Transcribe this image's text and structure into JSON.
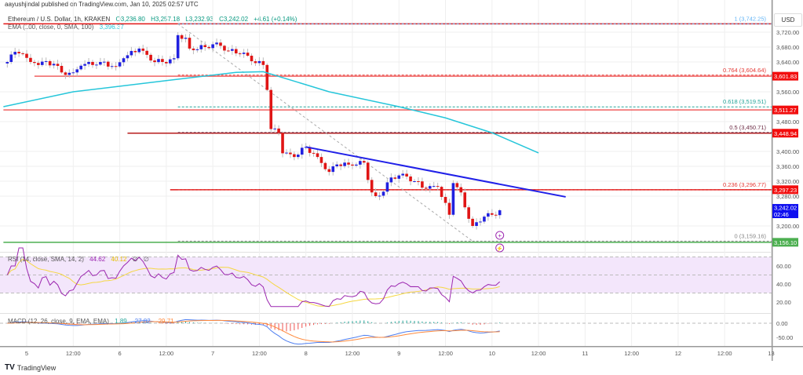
{
  "header": {
    "publisher": "aayushjindal published on TradingView.com, Jan 10, 2025 02:57 UTC",
    "symbol": "Ethereum / U.S. Dollar, 1h, KRAKEN",
    "open": "O3,236.80",
    "high": "H3,257.18",
    "low": "L3,232.93",
    "close": "C3,242.02",
    "change": "+4.61 (+0.14%)",
    "ema_label": "EMA (100, close, 0, SMA, 100)",
    "ema_value": "3,396.37",
    "currency": "USD"
  },
  "rsi_legend": {
    "label": "RSI (14, close, SMA, 14, 2)",
    "value": "44.62",
    "sma": "40.12",
    "extra1": "∅",
    "extra2": "∅"
  },
  "macd_legend": {
    "label": "MACD (12, 26, close, 9, EMA, EMA)",
    "hist": "1.89",
    "macd": "-27.82",
    "signal": "-29.71"
  },
  "footer": {
    "logo": "TV",
    "brand": "TradingView"
  },
  "colors": {
    "up": "#2020e0",
    "down": "#e01515",
    "ema": "#26c6da",
    "trendline": "#2020e8",
    "rsi": "#9c27b0",
    "rsi_sma": "#f5d742",
    "macd": "#4f7ff0",
    "signal": "#ff8a3d",
    "last_price": "#1010f0",
    "support": "#4caf50"
  },
  "chart_data": {
    "type": "candlestick",
    "interval": "1h",
    "ylim": [
      3140,
      3760
    ],
    "price_ticks": [
      "3,720.00",
      "3,680.00",
      "3,640.00",
      "3,560.00",
      "3,480.00",
      "3,400.00",
      "3,360.00",
      "3,320.00",
      "3,280.00",
      "3,200.00"
    ],
    "price_tick_values": [
      3720,
      3680,
      3640,
      3560,
      3480,
      3400,
      3360,
      3320,
      3280,
      3200
    ],
    "time_ticks": [
      {
        "t": "01-05 00:00",
        "label": "5"
      },
      {
        "t": "01-05 12:00",
        "label": "12:00"
      },
      {
        "t": "01-06 00:00",
        "label": "6"
      },
      {
        "t": "01-06 12:00",
        "label": "12:00"
      },
      {
        "t": "01-07 00:00",
        "label": "7"
      },
      {
        "t": "01-07 12:00",
        "label": "12:00"
      },
      {
        "t": "01-08 00:00",
        "label": "8"
      },
      {
        "t": "01-08 12:00",
        "label": "12:00"
      },
      {
        "t": "01-09 00:00",
        "label": "9"
      },
      {
        "t": "01-09 12:00",
        "label": "12:00"
      },
      {
        "t": "01-10 00:00",
        "label": "10"
      },
      {
        "t": "01-10 12:00",
        "label": "12:00"
      },
      {
        "t": "01-11 00:00",
        "label": "11"
      },
      {
        "t": "01-11 12:00",
        "label": "12:00"
      },
      {
        "t": "01-12 00:00",
        "label": "12"
      },
      {
        "t": "01-12 12:00",
        "label": "12:00"
      },
      {
        "t": "01-13 00:00",
        "label": "13"
      }
    ],
    "close_path": [
      [
        "01-04 19:00",
        3640
      ],
      [
        "01-04 20:00",
        3660
      ],
      [
        "01-04 23:00",
        3662
      ],
      [
        "01-05 01:00",
        3640
      ],
      [
        "01-05 07:00",
        3635
      ],
      [
        "01-05 09:00",
        3612
      ],
      [
        "01-05 12:00",
        3612
      ],
      [
        "01-05 14:00",
        3630
      ],
      [
        "01-05 19:00",
        3640
      ],
      [
        "01-05 23:00",
        3628
      ],
      [
        "01-06 01:00",
        3650
      ],
      [
        "01-06 05:00",
        3676
      ],
      [
        "01-06 08:00",
        3644
      ],
      [
        "01-06 11:00",
        3640
      ],
      [
        "01-06 14:00",
        3650
      ],
      [
        "01-06 15:00",
        3712
      ],
      [
        "01-06 17:00",
        3705
      ],
      [
        "01-06 18:00",
        3676
      ],
      [
        "01-06 22:00",
        3680
      ],
      [
        "01-07 01:00",
        3692
      ],
      [
        "01-07 04:00",
        3670
      ],
      [
        "01-07 08:00",
        3665
      ],
      [
        "01-07 10:00",
        3642
      ],
      [
        "01-07 13:00",
        3632
      ],
      [
        "01-07 14:00",
        3565
      ],
      [
        "01-07 15:00",
        3460
      ],
      [
        "01-07 17:00",
        3450
      ],
      [
        "01-07 18:00",
        3395
      ],
      [
        "01-07 21:00",
        3385
      ],
      [
        "01-08 00:00",
        3412
      ],
      [
        "01-08 03:00",
        3385
      ],
      [
        "01-08 06:00",
        3345
      ],
      [
        "01-08 08:00",
        3365
      ],
      [
        "01-08 12:00",
        3362
      ],
      [
        "01-08 15:00",
        3370
      ],
      [
        "01-08 17:00",
        3290
      ],
      [
        "01-08 18:00",
        3280
      ],
      [
        "01-08 20:00",
        3292
      ],
      [
        "01-08 22:00",
        3330
      ],
      [
        "01-09 01:00",
        3340
      ],
      [
        "01-09 04:00",
        3320
      ],
      [
        "01-09 07:00",
        3300
      ],
      [
        "01-09 10:00",
        3305
      ],
      [
        "01-09 13:00",
        3230
      ],
      [
        "01-09 14:00",
        3315
      ],
      [
        "01-09 16:00",
        3290
      ],
      [
        "01-09 17:00",
        3250
      ],
      [
        "01-09 19:00",
        3200
      ],
      [
        "01-09 20:00",
        3210
      ],
      [
        "01-09 22:00",
        3225
      ],
      [
        "01-10 00:00",
        3230
      ],
      [
        "01-10 02:00",
        3242
      ]
    ],
    "ema_path": [
      [
        "01-04 18:00",
        3520
      ],
      [
        "01-05 12:00",
        3560
      ],
      [
        "01-06 12:00",
        3590
      ],
      [
        "01-07 06:00",
        3612
      ],
      [
        "01-07 13:00",
        3614
      ],
      [
        "01-08 06:00",
        3560
      ],
      [
        "01-09 00:00",
        3520
      ],
      [
        "01-09 12:00",
        3490
      ],
      [
        "01-10 00:00",
        3450
      ],
      [
        "01-10 12:00",
        3396
      ]
    ],
    "horizontal_levels": [
      {
        "price": 3742.25,
        "from": "01-04 18:00",
        "color": "#e01515",
        "style": "solid"
      },
      {
        "price": 3601.83,
        "from": "01-05 02:00",
        "color": "#f06060",
        "style": "solid",
        "tag": "3,601.83"
      },
      {
        "price": 3511.27,
        "from": "01-04 18:00",
        "color": "#f06060",
        "style": "solid",
        "tag": "3,511.27"
      },
      {
        "price": 3448.94,
        "from": "01-06 02:00",
        "color": "#b71c1c",
        "style": "solid",
        "tag": "3,448.94"
      },
      {
        "price": 3297.23,
        "from": "01-06 13:00",
        "color": "#e01515",
        "style": "solid",
        "tag": "3,297.23"
      },
      {
        "price": 3156.1,
        "from": "01-04 18:00",
        "color": "#4caf50",
        "style": "solid",
        "tag": "3,156.10"
      }
    ],
    "fib_levels": [
      {
        "ratio": "1",
        "price": 3742.25,
        "label": "1 (3,742.25)",
        "color": "#64b5f6"
      },
      {
        "ratio": "0.764",
        "price": 3604.64,
        "label": "0.764 (3,604.64)",
        "color": "#e53935"
      },
      {
        "ratio": "0.618",
        "price": 3519.51,
        "label": "0.618 (3,519.51)",
        "color": "#26a69a"
      },
      {
        "ratio": "0.5",
        "price": 3450.71,
        "label": "0.5 (3,450.71)",
        "color": "#6d2c45"
      },
      {
        "ratio": "0.236",
        "price": 3296.77,
        "label": "0.236 (3,296.77)",
        "color": "#e53935"
      },
      {
        "ratio": "0",
        "price": 3159.16,
        "label": "0 (3,159.16)",
        "color": "#888888"
      }
    ],
    "fib_from": "01-06 15:00",
    "fib_diagonal": [
      [
        "01-06 15:00",
        3742.25
      ],
      [
        "01-09 19:00",
        3159.16
      ]
    ],
    "trendline": [
      [
        "01-08 00:00",
        3412
      ],
      [
        "01-10 19:00",
        3278
      ]
    ],
    "last_price": {
      "value": "3,242.02",
      "countdown": "02:46",
      "price": 3242.02
    },
    "rsi": {
      "ticks": [
        "60.00",
        "40.00",
        "20.00"
      ],
      "tick_values": [
        60,
        40,
        20
      ],
      "band": [
        30,
        70
      ],
      "mid": 50
    },
    "macd": {
      "ticks": [
        "0.00",
        "-50.00"
      ],
      "tick_values": [
        0,
        -50
      ]
    }
  }
}
